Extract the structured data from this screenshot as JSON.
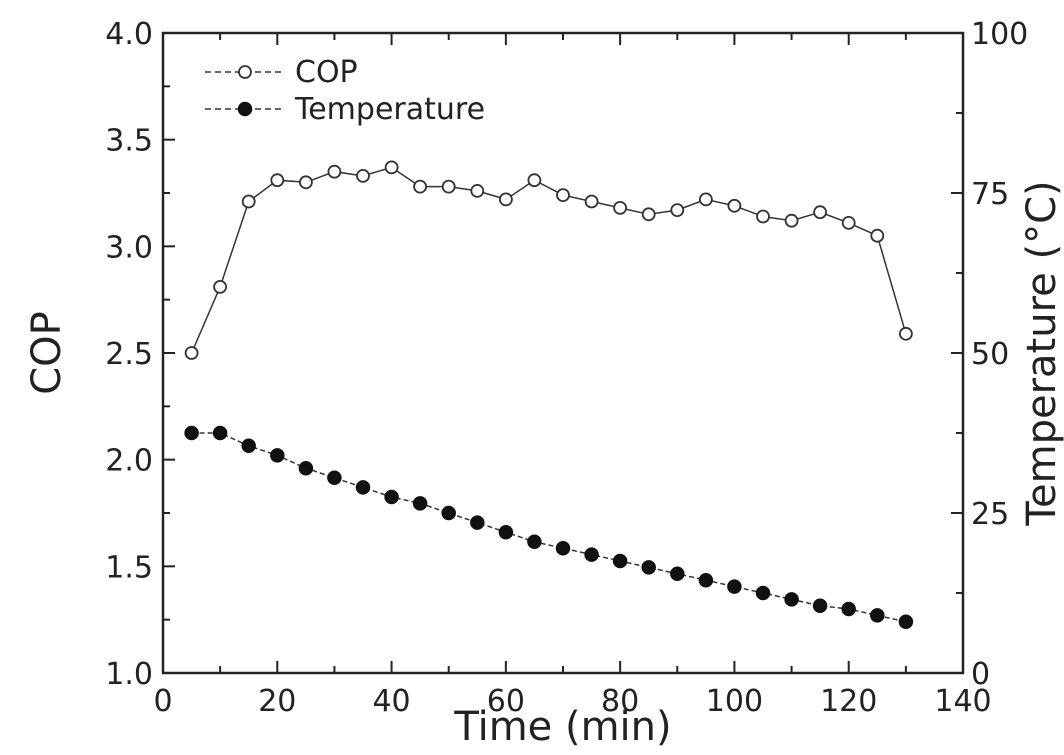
{
  "chart_data": {
    "type": "line",
    "xlabel": "Time (min)",
    "ylabel": "COP",
    "y2label": "Temperature (°C)",
    "xlim": [
      0,
      140
    ],
    "ylim": [
      1.0,
      4.0
    ],
    "y2lim": [
      0,
      100
    ],
    "xticks": [
      "0",
      "20",
      "40",
      "60",
      "80",
      "100",
      "120",
      "140"
    ],
    "yticks": [
      "1.0",
      "1.5",
      "2.0",
      "2.5",
      "3.0",
      "3.5",
      "4.0"
    ],
    "y2ticks": [
      "0",
      "25",
      "50",
      "75",
      "100"
    ],
    "grid": false,
    "legend": "top-left",
    "series": [
      {
        "name": "COP",
        "axis": "left",
        "marker": "open-circle",
        "x": [
          5,
          10,
          15,
          20,
          25,
          30,
          35,
          40,
          45,
          50,
          55,
          60,
          65,
          70,
          75,
          80,
          85,
          90,
          95,
          100,
          105,
          110,
          115,
          120,
          125,
          130
        ],
        "values": [
          2.5,
          2.81,
          3.21,
          3.31,
          3.3,
          3.35,
          3.33,
          3.37,
          3.28,
          3.28,
          3.26,
          3.22,
          3.31,
          3.24,
          3.21,
          3.18,
          3.15,
          3.17,
          3.22,
          3.19,
          3.14,
          3.12,
          3.16,
          3.11,
          3.05,
          2.59
        ]
      },
      {
        "name": "Temperature",
        "axis": "right",
        "marker": "filled-circle",
        "x": [
          5,
          10,
          15,
          20,
          25,
          30,
          35,
          40,
          45,
          50,
          55,
          60,
          65,
          70,
          75,
          80,
          85,
          90,
          95,
          100,
          105,
          110,
          115,
          120,
          125,
          130
        ],
        "values": [
          37.5,
          37.5,
          35.5,
          34,
          32,
          30.5,
          29,
          27.5,
          26.5,
          25,
          23.5,
          22,
          20.5,
          19.5,
          18.5,
          17.5,
          16.5,
          15.5,
          14.5,
          13.5,
          12.5,
          11.5,
          10.5,
          10,
          9,
          8
        ]
      }
    ]
  }
}
